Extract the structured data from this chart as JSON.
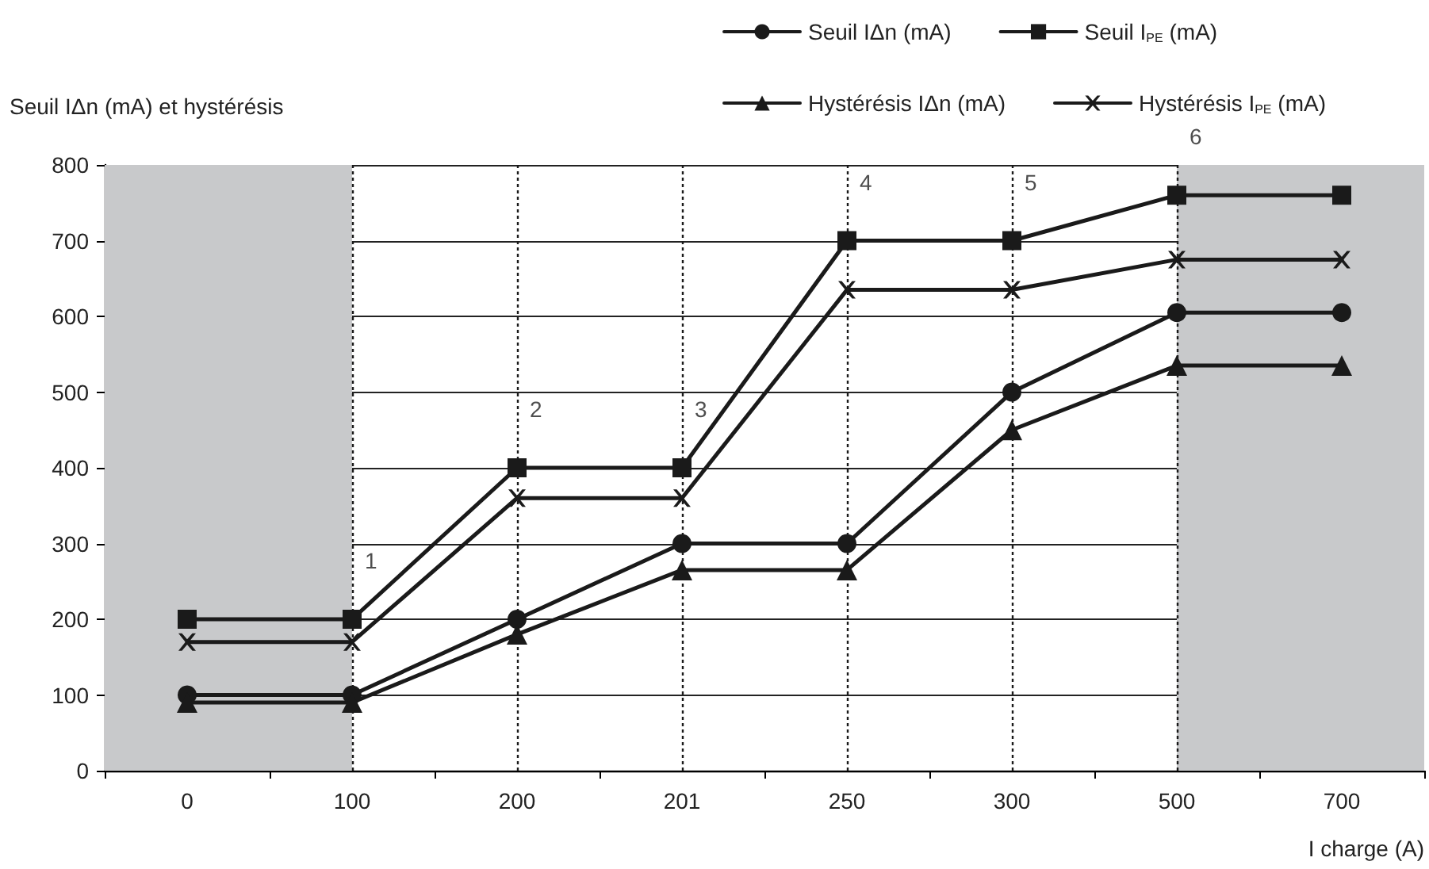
{
  "chart_data": {
    "type": "line",
    "ylabel": "Seuil IΔn (mA) et hystérésis",
    "xlabel": "I charge (A)",
    "categories": [
      "0",
      "100",
      "200",
      "201",
      "250",
      "300",
      "500",
      "700"
    ],
    "series": [
      {
        "name": "Seuil IΔn (mA)",
        "color": "#1a1a1a",
        "marker": "circle",
        "values": [
          100,
          100,
          200,
          300,
          300,
          500,
          605,
          605
        ]
      },
      {
        "name": "Seuil I$_{PE}$ (mA)",
        "color": "#1a1a1a",
        "marker": "square",
        "values": [
          200,
          200,
          400,
          400,
          700,
          700,
          760,
          760
        ]
      },
      {
        "name": "Hystérésis IΔn (mA)",
        "color": "#1a1a1a",
        "marker": "triangle",
        "values": [
          90,
          90,
          180,
          265,
          265,
          450,
          535,
          535
        ]
      },
      {
        "name": "Hystérésis I$_{PE}$ (mA)",
        "color": "#1a1a1a",
        "marker": "cross",
        "values": [
          170,
          170,
          360,
          360,
          635,
          635,
          675,
          675
        ]
      }
    ],
    "ylim": [
      0,
      800
    ],
    "yticks": [
      0,
      100,
      200,
      300,
      400,
      500,
      600,
      700,
      800
    ],
    "grid": "y",
    "legend": "top right",
    "line_style": "solid",
    "ref_lines": [
      {
        "axis": "x",
        "value": "100",
        "line_style": "dotted",
        "color": "#1a1a1a"
      },
      {
        "axis": "x",
        "value": "200",
        "line_style": "dotted",
        "color": "#1a1a1a"
      },
      {
        "axis": "x",
        "value": "201",
        "line_style": "dotted",
        "color": "#1a1a1a"
      },
      {
        "axis": "x",
        "value": "250",
        "line_style": "dotted",
        "color": "#1a1a1a"
      },
      {
        "axis": "x",
        "value": "300",
        "line_style": "dotted",
        "color": "#1a1a1a"
      },
      {
        "axis": "x",
        "value": "500",
        "line_style": "dotted",
        "color": "#1a1a1a"
      }
    ],
    "bands": [
      {
        "axis": "x",
        "from": "0",
        "to": "100",
        "color": "#c8c9cb"
      },
      {
        "axis": "x",
        "from": "500",
        "to": "700",
        "color": "#c8c9cb"
      }
    ],
    "annotations": [
      {
        "text": "1",
        "x": "100",
        "y": 200
      },
      {
        "text": "2",
        "x": "200",
        "y": 400
      },
      {
        "text": "3",
        "x": "201",
        "y": 400
      },
      {
        "text": "4",
        "x": "250",
        "y": 700
      },
      {
        "text": "5",
        "x": "300",
        "y": 700
      },
      {
        "text": "6",
        "x": "500",
        "y": 760
      }
    ]
  }
}
